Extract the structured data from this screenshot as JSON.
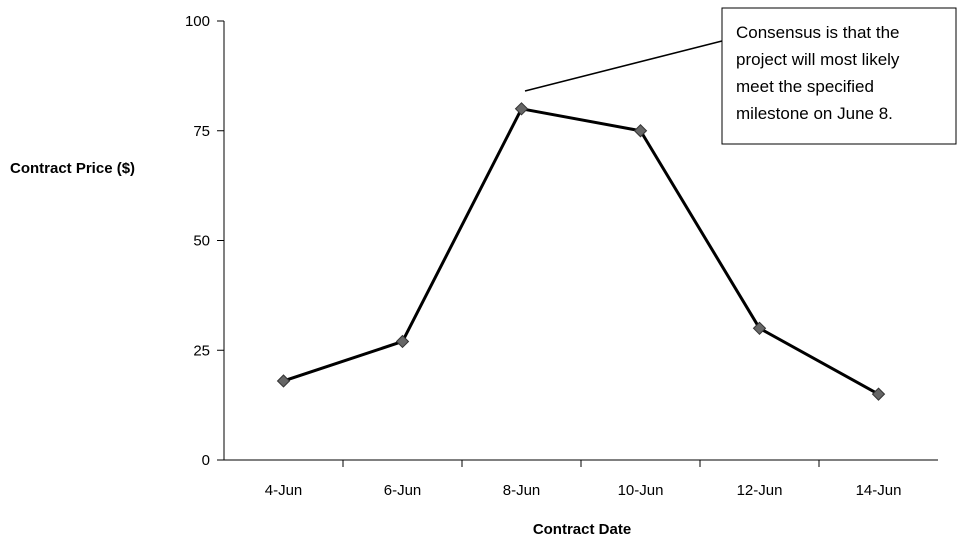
{
  "chart_data": {
    "type": "line",
    "categories": [
      "4-Jun",
      "6-Jun",
      "8-Jun",
      "10-Jun",
      "12-Jun",
      "14-Jun"
    ],
    "series": [
      {
        "values": [
          18,
          27,
          80,
          75,
          30,
          15
        ]
      }
    ],
    "xlabel": "Contract Date",
    "ylabel": "Contract Price ($)",
    "ylim": [
      0,
      100
    ],
    "yticks": [
      0,
      25,
      50,
      75,
      100
    ],
    "grid": false,
    "annotation": {
      "lines": [
        "Consensus is that the",
        "project will most likely",
        "meet the specified",
        "milestone on June 8."
      ],
      "points_to": "8-Jun"
    },
    "colors": {
      "line": "#000000",
      "marker": "#666666"
    }
  }
}
